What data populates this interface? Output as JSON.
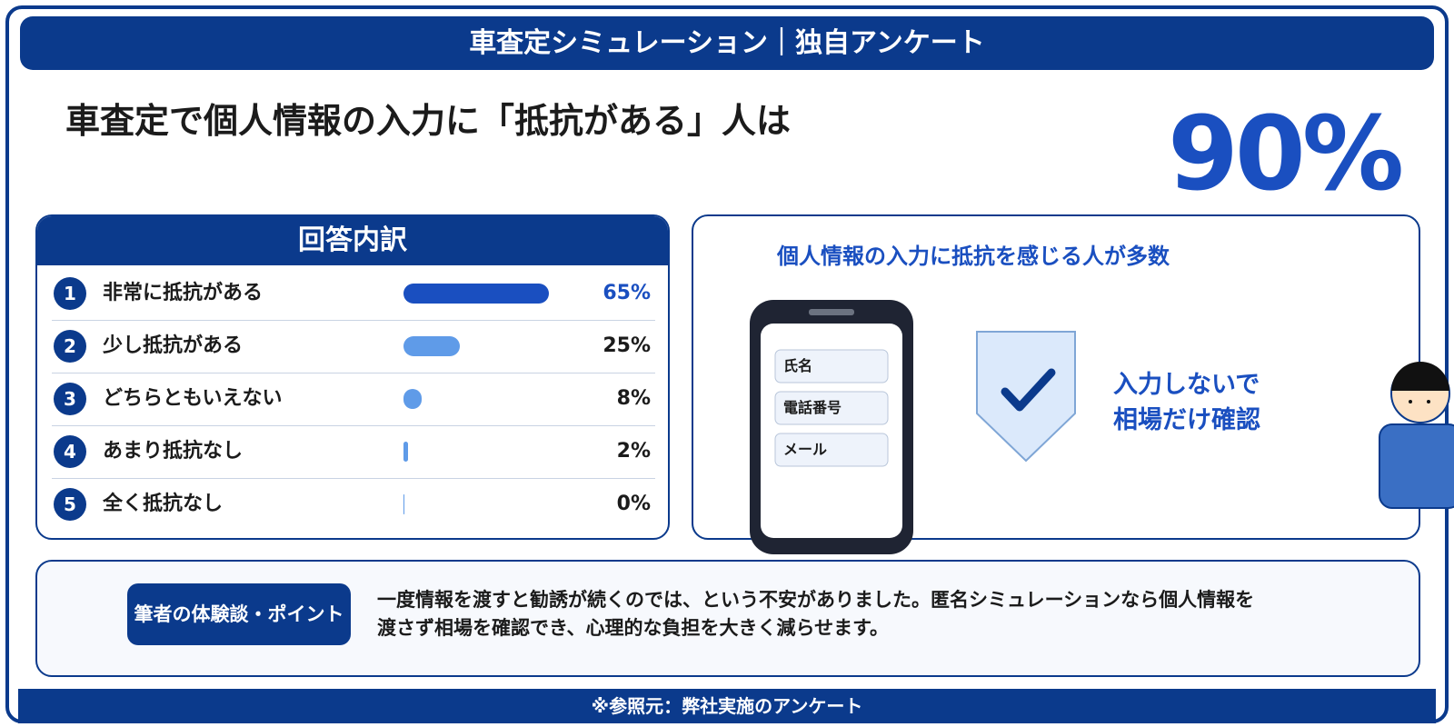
{
  "header": {
    "title": "車査定シミュレーション｜独自アンケート"
  },
  "headline": "車査定で個人情報の入力に「抵抗がある」人は",
  "stat": "90%",
  "breakdown": {
    "title": "回答内訳",
    "items": [
      {
        "rank": 1,
        "label": "非常に抵抗がある",
        "value": 65,
        "value_label": "65%",
        "color": "#1a4fc0"
      },
      {
        "rank": 2,
        "label": "少し抵抗がある",
        "value": 25,
        "value_label": "25%",
        "color": "#5f9be8"
      },
      {
        "rank": 3,
        "label": "どちらともいえない",
        "value": 8,
        "value_label": "8%",
        "color": "#5f9be8"
      },
      {
        "rank": 4,
        "label": "あまり抵抗なし",
        "value": 2,
        "value_label": "2%",
        "color": "#5f9be8"
      },
      {
        "rank": 5,
        "label": "全く抵抗なし",
        "value": 0,
        "value_label": "0%",
        "color": "#5f9be8"
      }
    ]
  },
  "panel": {
    "title": "個人情報の入力に抵抗を感じる人が多数",
    "form_fields": [
      "氏名",
      "電話番号",
      "メール"
    ],
    "message": [
      "入力しないで",
      "相場だけ確認"
    ]
  },
  "note": {
    "tag": "筆者の体験談・ポイント",
    "lines": [
      "一度情報を渡すと勧誘が続くのでは、という不安がありました。匿名シミュレーションなら個人情報を",
      "渡さず相場を確認でき、心理的な負担を大きく減らせます。"
    ]
  },
  "footer": "※参照元：弊社実施のアンケート"
}
